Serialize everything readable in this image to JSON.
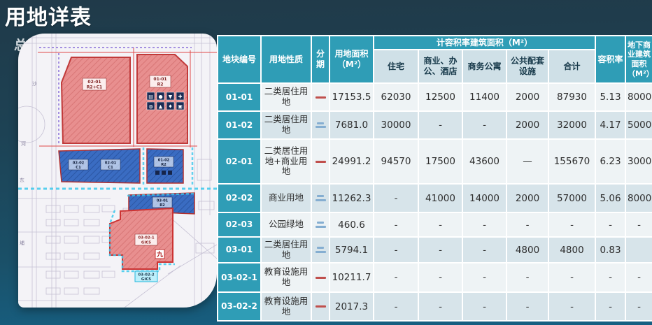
{
  "slide": {
    "title": "用地详表"
  },
  "map": {
    "corner_label": "总",
    "road_labels": [
      "沙",
      "河",
      "东",
      "埔"
    ],
    "facility_icons": [
      "▤",
      "●",
      "▼",
      "✚",
      "◍",
      "▲",
      "♦",
      "▣"
    ],
    "landmark_label": "九",
    "parcels": [
      {
        "id": "02-01",
        "code": "R2+C1"
      },
      {
        "id": "01-01",
        "code": "R2"
      },
      {
        "id": "02-02",
        "code": "C1"
      },
      {
        "id": "02-01",
        "code": "C1"
      },
      {
        "id": "01-02",
        "code": "R2"
      },
      {
        "id": "03-01",
        "code": "R2"
      },
      {
        "id": "03-02-1",
        "code": "GIC5"
      },
      {
        "id": "03-02-2",
        "code": "GIC5"
      }
    ]
  },
  "colors": {
    "accent_teal": "#2f9db6",
    "subheader_gray": "#cfe0e7",
    "phase_one_red": "#c0504d",
    "phase_two_blue": "#85aed1",
    "parcel_red": "#e88f8f",
    "parcel_blue": "#3a6cc2"
  },
  "table": {
    "headers": {
      "plot": "地块编号",
      "nature": "用地性质",
      "phase": "分期",
      "area": "用地面积（M²）",
      "far_group": "计容积率建筑面积（M²）",
      "sub": [
        "住宅",
        "商业、办公、酒店",
        "商务公寓",
        "公共配套设施",
        "合计"
      ],
      "far": "容积率",
      "underground": "地下商业建筑面积（M²）"
    },
    "rows": [
      {
        "id": "01-01",
        "nature": "二类居住用地",
        "phase": "一",
        "area": "17153.5",
        "residential": "62030",
        "commercial": "12500",
        "apartment": "11400",
        "public": "2000",
        "total": "87930",
        "far": "5.13",
        "underground": "8000"
      },
      {
        "id": "01-02",
        "nature": "二类居住用地",
        "phase": "二",
        "area": "7681.0",
        "residential": "30000",
        "commercial": "-",
        "apartment": "-",
        "public": "2000",
        "total": "32000",
        "far": "4.17",
        "underground": "5000"
      },
      {
        "id": "02-01",
        "nature": "二类居住用地+商业用地",
        "phase": "一",
        "area": "24991.2",
        "residential": "94570",
        "commercial": "17500",
        "apartment": "43600",
        "public": "—",
        "total": "155670",
        "far": "6.23",
        "underground": "3000"
      },
      {
        "id": "02-02",
        "nature": "商业用地",
        "phase": "二",
        "area": "11262.3",
        "residential": "-",
        "commercial": "41000",
        "apartment": "14000",
        "public": "2000",
        "total": "57000",
        "far": "5.06",
        "underground": "8000"
      },
      {
        "id": "02-03",
        "nature": "公园绿地",
        "phase": "二",
        "area": "460.6",
        "residential": "-",
        "commercial": "-",
        "apartment": "-",
        "public": "-",
        "total": "-",
        "far": "-",
        "underground": "-"
      },
      {
        "id": "03-01",
        "nature": "二类居住用地",
        "phase": "二",
        "area": "5794.1",
        "residential": "-",
        "commercial": "-",
        "apartment": "-",
        "public": "4800",
        "total": "4800",
        "far": "0.83",
        "underground": ""
      },
      {
        "id": "03-02-1",
        "nature": "教育设施用地",
        "phase": "一",
        "area": "10211.7",
        "residential": "-",
        "commercial": "-",
        "apartment": "-",
        "public": "-",
        "total": "-",
        "far": "-",
        "underground": "-"
      },
      {
        "id": "03-02-2",
        "nature": "教育设施用地",
        "phase": "一",
        "area": "2017.3",
        "residential": "-",
        "commercial": "-",
        "apartment": "-",
        "public": "-",
        "total": "-",
        "far": "-",
        "underground": "-"
      }
    ]
  }
}
